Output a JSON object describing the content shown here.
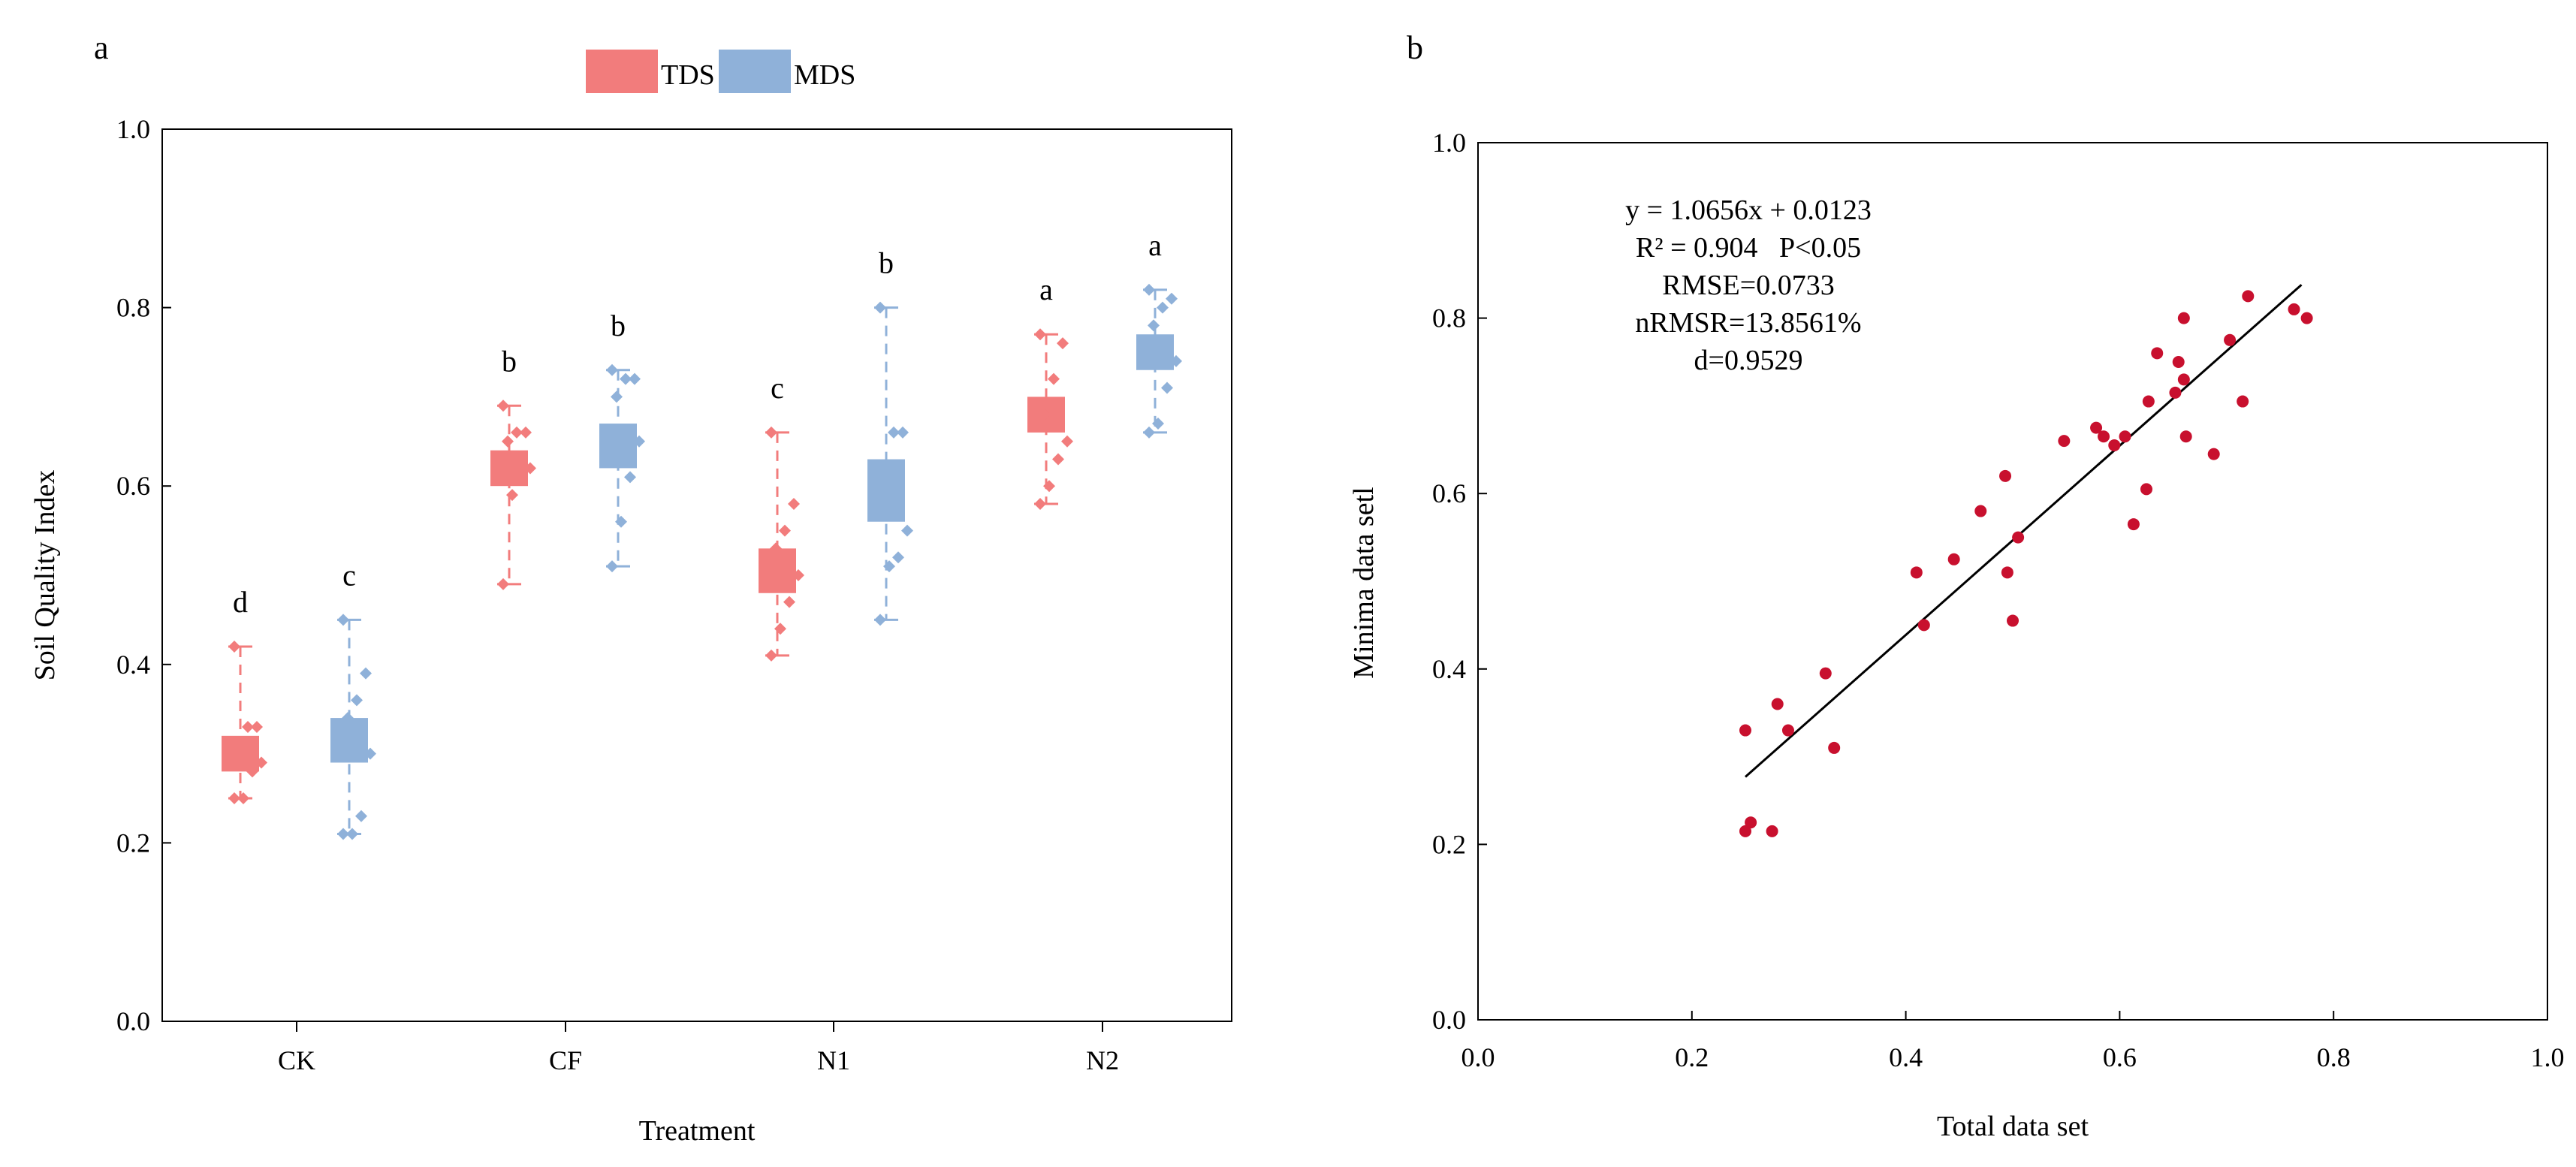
{
  "chart_data": [
    {
      "panel": "a",
      "type": "box",
      "xlabel": "Treatment",
      "ylabel": "Soil Quality Index",
      "ylim": [
        0,
        1.0
      ],
      "yticks": [
        "0.0",
        "0.2",
        "0.4",
        "0.6",
        "0.8",
        "1.0"
      ],
      "categories": [
        "CK",
        "CF",
        "N1",
        "N2"
      ],
      "legend": {
        "position": "top-center",
        "entries": [
          "TDS",
          "MDS"
        ]
      },
      "colors": {
        "TDS": "#f27c7c",
        "MDS": "#8fb1d9"
      },
      "series": [
        {
          "name": "TDS",
          "boxes": [
            {
              "category": "CK",
              "min": 0.25,
              "q1": 0.28,
              "q3": 0.32,
              "max": 0.42,
              "letter": "d",
              "points": [
                0.25,
                0.25,
                0.28,
                0.29,
                0.3,
                0.33,
                0.33,
                0.42
              ]
            },
            {
              "category": "CF",
              "min": 0.49,
              "q1": 0.6,
              "q3": 0.64,
              "max": 0.69,
              "letter": "b",
              "points": [
                0.49,
                0.59,
                0.61,
                0.62,
                0.65,
                0.66,
                0.66,
                0.69
              ]
            },
            {
              "category": "N1",
              "min": 0.41,
              "q1": 0.48,
              "q3": 0.53,
              "max": 0.66,
              "letter": "c",
              "points": [
                0.41,
                0.44,
                0.47,
                0.5,
                0.53,
                0.55,
                0.58,
                0.66
              ]
            },
            {
              "category": "N2",
              "min": 0.58,
              "q1": 0.66,
              "q3": 0.7,
              "max": 0.77,
              "letter": "a",
              "points": [
                0.58,
                0.6,
                0.63,
                0.65,
                0.68,
                0.72,
                0.76,
                0.77
              ]
            }
          ]
        },
        {
          "name": "MDS",
          "boxes": [
            {
              "category": "CK",
              "min": 0.21,
              "q1": 0.29,
              "q3": 0.34,
              "max": 0.45,
              "letter": "c",
              "points": [
                0.21,
                0.21,
                0.23,
                0.3,
                0.34,
                0.36,
                0.39,
                0.45
              ]
            },
            {
              "category": "CF",
              "min": 0.51,
              "q1": 0.62,
              "q3": 0.67,
              "max": 0.73,
              "letter": "b",
              "points": [
                0.51,
                0.56,
                0.61,
                0.65,
                0.7,
                0.72,
                0.72,
                0.73
              ]
            },
            {
              "category": "N1",
              "min": 0.45,
              "q1": 0.56,
              "q3": 0.63,
              "max": 0.8,
              "letter": "b",
              "points": [
                0.45,
                0.51,
                0.52,
                0.55,
                0.6,
                0.66,
                0.66,
                0.8
              ]
            },
            {
              "category": "N2",
              "min": 0.66,
              "q1": 0.73,
              "q3": 0.77,
              "max": 0.82,
              "letter": "a",
              "points": [
                0.66,
                0.67,
                0.71,
                0.74,
                0.78,
                0.8,
                0.81,
                0.82
              ]
            }
          ]
        }
      ]
    },
    {
      "panel": "b",
      "type": "scatter",
      "xlabel": "Total data set",
      "ylabel": "Minima data setl",
      "xlim": [
        0,
        1.0
      ],
      "ylim": [
        0,
        1.0
      ],
      "xticks": [
        "0.0",
        "0.2",
        "0.4",
        "0.6",
        "0.8",
        "1.0"
      ],
      "yticks": [
        "0.0",
        "0.2",
        "0.4",
        "0.6",
        "0.8",
        "1.0"
      ],
      "point_color": "#c8102e",
      "fit_line": {
        "x": [
          0.25,
          0.77
        ],
        "y": [
          0.277,
          0.838
        ]
      },
      "annotations": {
        "equation": "y = 1.0656x + 0.0123",
        "r2": "R² = 0.904   P<0.05",
        "rmse": "RMSE=0.0733",
        "nrmsr": "nRMSR=13.8561%",
        "d": "d=0.9529"
      },
      "points": [
        [
          0.25,
          0.33
        ],
        [
          0.25,
          0.215
        ],
        [
          0.255,
          0.225
        ],
        [
          0.275,
          0.215
        ],
        [
          0.28,
          0.36
        ],
        [
          0.29,
          0.33
        ],
        [
          0.325,
          0.395
        ],
        [
          0.333,
          0.31
        ],
        [
          0.41,
          0.51
        ],
        [
          0.417,
          0.45
        ],
        [
          0.445,
          0.525
        ],
        [
          0.47,
          0.58
        ],
        [
          0.493,
          0.62
        ],
        [
          0.495,
          0.51
        ],
        [
          0.5,
          0.455
        ],
        [
          0.505,
          0.55
        ],
        [
          0.548,
          0.66
        ],
        [
          0.578,
          0.675
        ],
        [
          0.585,
          0.665
        ],
        [
          0.595,
          0.655
        ],
        [
          0.605,
          0.665
        ],
        [
          0.613,
          0.565
        ],
        [
          0.625,
          0.605
        ],
        [
          0.627,
          0.705
        ],
        [
          0.635,
          0.76
        ],
        [
          0.652,
          0.715
        ],
        [
          0.655,
          0.75
        ],
        [
          0.66,
          0.73
        ],
        [
          0.66,
          0.8
        ],
        [
          0.662,
          0.665
        ],
        [
          0.688,
          0.645
        ],
        [
          0.703,
          0.775
        ],
        [
          0.715,
          0.705
        ],
        [
          0.72,
          0.825
        ],
        [
          0.763,
          0.81
        ],
        [
          0.775,
          0.8
        ]
      ]
    }
  ]
}
